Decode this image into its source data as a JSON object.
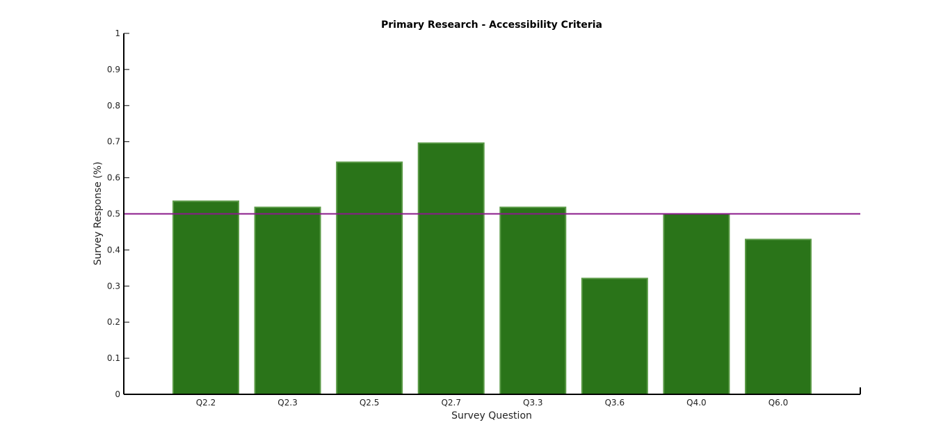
{
  "chart_data": {
    "type": "bar",
    "title": "Primary Research - Accessibility Criteria",
    "xlabel": "Survey Question",
    "ylabel": "Survey Response (%)",
    "categories": [
      "Q2.2",
      "Q2.3",
      "Q2.5",
      "Q2.7",
      "Q3.3",
      "Q3.6",
      "Q4.0",
      "Q6.0"
    ],
    "values": [
      0.535,
      0.518,
      0.643,
      0.696,
      0.518,
      0.321,
      0.5,
      0.429
    ],
    "ylim": [
      0,
      1
    ],
    "yticks": [
      0,
      0.1,
      0.2,
      0.3,
      0.4,
      0.5,
      0.6,
      0.7,
      0.8,
      0.9,
      1
    ],
    "ytick_labels": [
      "0",
      "0.1",
      "0.2",
      "0.3",
      "0.4",
      "0.5",
      "0.6",
      "0.7",
      "0.8",
      "0.9",
      "1"
    ],
    "reference_line": 0.5,
    "grid": false,
    "legend": "none",
    "colors": {
      "bar_fill": "#2a7419",
      "bar_edge": "#5a9a46",
      "reference_line": "#8b1a8b",
      "axis": "#000000"
    }
  }
}
